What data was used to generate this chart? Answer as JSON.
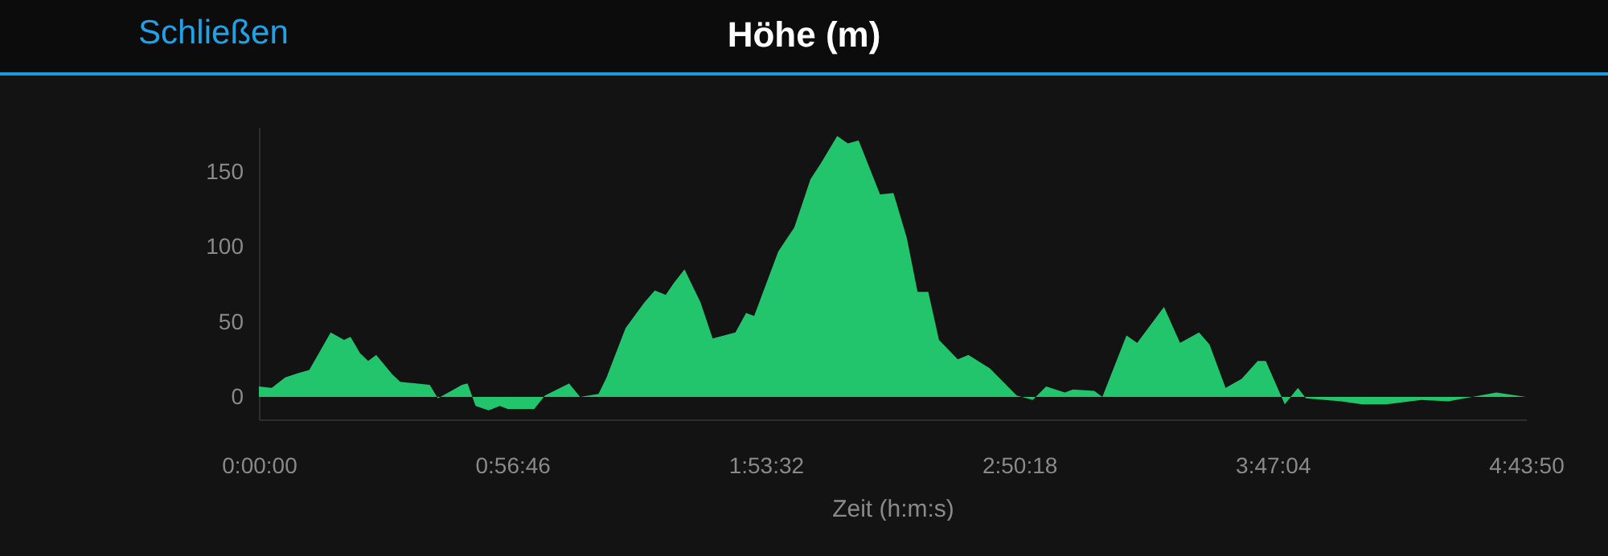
{
  "chart_data": {
    "type": "area",
    "title": "Höhe (m)",
    "xlabel": "Zeit (h:m:s)",
    "annotations": [
      "Schließen"
    ],
    "xlim": [
      0,
      4.73056
    ],
    "ylim": [
      -15,
      180
    ],
    "xticks": [
      {
        "value": 0,
        "label": "0:00:00"
      },
      {
        "value": 0.94611,
        "label": "0:56:46"
      },
      {
        "value": 1.89222,
        "label": "1:53:32"
      },
      {
        "value": 2.83833,
        "label": "2:50:18"
      },
      {
        "value": 3.78444,
        "label": "3:47:04"
      },
      {
        "value": 4.73056,
        "label": "4:43:50"
      }
    ],
    "yticks": [
      0,
      50,
      100,
      150
    ],
    "grid": false,
    "series": [
      {
        "color": "#22c46c",
        "x": [
          0,
          0.048,
          0.098,
          0.148,
          0.188,
          0.268,
          0.318,
          0.342,
          0.378,
          0.408,
          0.438,
          0.498,
          0.528,
          0.638,
          0.668,
          0.718,
          0.758,
          0.779,
          0.809,
          0.858,
          0.899,
          0.929,
          1.028,
          1.068,
          1.158,
          1.199,
          1.268,
          1.298,
          1.369,
          1.439,
          1.478,
          1.519,
          1.549,
          1.589,
          1.649,
          1.694,
          1.779,
          1.819,
          1.849,
          1.939,
          1.999,
          2.059,
          2.099,
          2.159,
          2.199,
          2.239,
          2.319,
          2.369,
          2.419,
          2.459,
          2.499,
          2.539,
          2.609,
          2.649,
          2.729,
          2.829,
          2.889,
          2.939,
          3.009,
          3.039,
          3.119,
          3.149,
          3.239,
          3.279,
          3.379,
          3.439,
          3.51,
          3.549,
          3.609,
          3.669,
          3.729,
          3.759,
          3.83,
          3.879,
          3.909,
          4.04,
          4.119,
          4.209,
          4.34,
          4.44,
          4.62,
          4.73
        ],
        "values": [
          7,
          6,
          13,
          16,
          18,
          43,
          38,
          40,
          29,
          24,
          28,
          15,
          10,
          8,
          -1,
          4,
          8,
          9,
          -6,
          -9,
          -6,
          -8,
          -8,
          1,
          9,
          0,
          2,
          13,
          46,
          63,
          71,
          68,
          76,
          85,
          63,
          39,
          43,
          56,
          54,
          97,
          113,
          145,
          156,
          174,
          169,
          171,
          135,
          136,
          106,
          70,
          70,
          38,
          25,
          28,
          19,
          1,
          -2,
          7,
          3,
          5,
          4,
          0,
          41,
          36,
          60,
          36,
          43,
          35,
          6,
          12,
          24,
          24,
          -5,
          6,
          -1,
          -3,
          -5,
          -5,
          -2,
          -3,
          3,
          0
        ]
      }
    ]
  }
}
